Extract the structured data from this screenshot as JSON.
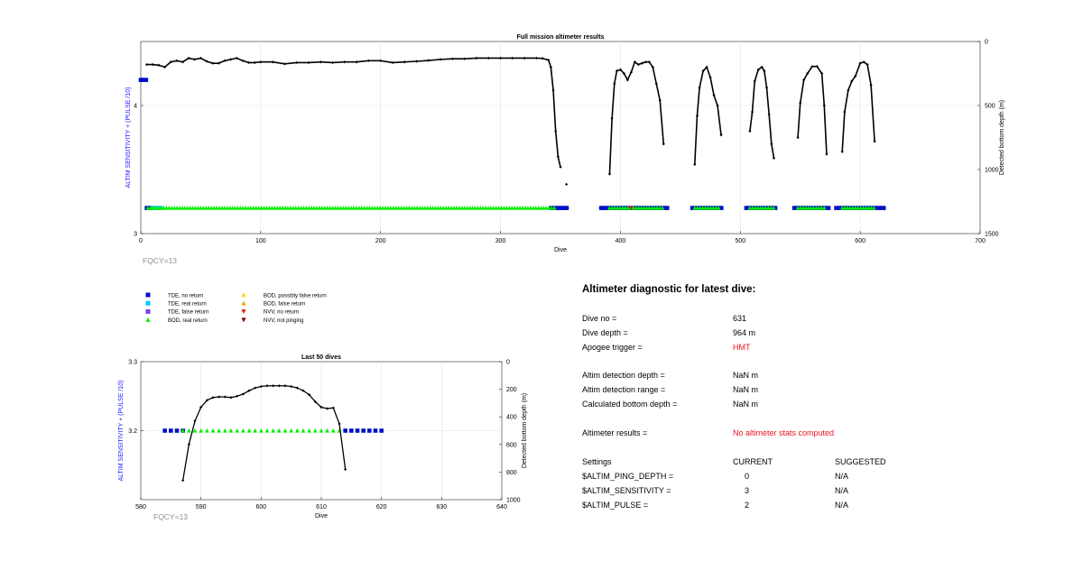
{
  "colors": {
    "axis_label_blue": "#1a1aff",
    "tde_no_return": "#0010c8",
    "tde_real_return": "#00c8ff",
    "tde_false_return": "#7b3fe0",
    "bod_real_return": "#00f000",
    "bod_possibly_false": "#ffd700",
    "bod_false_return": "#f0a000",
    "nvv_no_return": "#e02000",
    "nvv_not_pinging": "#7a0000",
    "depth_line": "#000000",
    "fqcy_text": "#909090",
    "highlight_red": "#e8141c"
  },
  "legend": [
    {
      "label": "TDE, no return",
      "color": "#0010c8",
      "marker": "square"
    },
    {
      "label": "TDE, real return",
      "color": "#00c8ff",
      "marker": "square"
    },
    {
      "label": "TDE, false return",
      "color": "#7b3fe0",
      "marker": "square"
    },
    {
      "label": "BOD, real return",
      "color": "#00f000",
      "marker": "triangle-up"
    },
    {
      "label": "BOD, possibly false return",
      "color": "#ffd700",
      "marker": "triangle-up"
    },
    {
      "label": "BOD, false return",
      "color": "#f0a000",
      "marker": "triangle-up"
    },
    {
      "label": "NVV, no return",
      "color": "#e02000",
      "marker": "triangle-down"
    },
    {
      "label": "NVV, not pinging",
      "color": "#7a0000",
      "marker": "triangle-down"
    }
  ],
  "chart_data": [
    {
      "type": "scatter",
      "title": "Full mission altimeter results",
      "xlabel": "Dive",
      "ylabel": "ALTIM SENSITIVITY + (PULSE /10)",
      "y2label": "Detected bottom depth (m)",
      "annotation": "FQCY=13",
      "xlim": [
        0,
        700
      ],
      "xticks": [
        0,
        100,
        200,
        300,
        400,
        500,
        600,
        700
      ],
      "ylim": [
        3,
        4.5
      ],
      "yticks": [
        3,
        4
      ],
      "y2lim": [
        0,
        1500
      ],
      "y2_reversed": true,
      "y2ticks": [
        0,
        500,
        1000,
        1500
      ],
      "grid": true,
      "settings_series": [
        {
          "name": "TDE, no return",
          "y": 4.2,
          "x_ranges": [
            [
              0,
              6
            ]
          ]
        },
        {
          "name": "TDE, no return",
          "y": 3.2,
          "x_ranges": [
            [
              5,
              10
            ],
            [
              342,
              356
            ],
            [
              384,
              440
            ],
            [
              460,
              485
            ],
            [
              505,
              530
            ],
            [
              545,
              575
            ],
            [
              580,
              620
            ]
          ]
        },
        {
          "name": "TDE, real return",
          "y": 3.2,
          "x_ranges": [
            [
              10,
              18
            ]
          ]
        },
        {
          "name": "BOD, real return",
          "y": 3.2,
          "x_ranges": [
            [
              6,
              345
            ],
            [
              391,
              435
            ],
            [
              462,
              482
            ],
            [
              508,
              528
            ],
            [
              548,
              572
            ],
            [
              585,
              612
            ]
          ]
        },
        {
          "name": "NVV, no return",
          "y": 3.2,
          "x": [
            409
          ]
        }
      ],
      "depth_series": [
        {
          "x": [
            5,
            10,
            15,
            20,
            25,
            30,
            35,
            40,
            45,
            50,
            55,
            60,
            65,
            70,
            75,
            80,
            85,
            90,
            95,
            100,
            110,
            120,
            130,
            140,
            150,
            160,
            170,
            180,
            190,
            200,
            210,
            220,
            230,
            240,
            250,
            260,
            270,
            280,
            290,
            300,
            310,
            320,
            330,
            335,
            340,
            342,
            344,
            346,
            348,
            350
          ],
          "y": [
            180,
            180,
            185,
            200,
            160,
            150,
            160,
            130,
            140,
            130,
            155,
            170,
            170,
            150,
            140,
            130,
            150,
            165,
            165,
            160,
            160,
            175,
            165,
            165,
            160,
            165,
            160,
            160,
            150,
            150,
            165,
            160,
            155,
            148,
            140,
            135,
            135,
            130,
            130,
            130,
            130,
            130,
            130,
            132,
            145,
            200,
            380,
            700,
            900,
            980
          ]
        },
        {
          "x": [
            355
          ],
          "y": [
            1115
          ]
        },
        {
          "x": [
            391,
            393,
            395,
            397,
            400,
            403,
            406,
            409,
            412,
            415,
            418,
            421,
            424,
            427,
            430,
            433,
            436
          ],
          "y": [
            1035,
            600,
            330,
            230,
            220,
            250,
            300,
            240,
            160,
            180,
            170,
            160,
            160,
            200,
            330,
            460,
            800
          ]
        },
        {
          "x": [
            462,
            464,
            466,
            469,
            472,
            475,
            478,
            481,
            484
          ],
          "y": [
            960,
            580,
            360,
            230,
            200,
            280,
            420,
            500,
            730
          ]
        },
        {
          "x": [
            508,
            510,
            512,
            515,
            518,
            520,
            522,
            524,
            526,
            528
          ],
          "y": [
            700,
            550,
            310,
            220,
            200,
            230,
            360,
            570,
            800,
            910
          ]
        },
        {
          "x": [
            548,
            550,
            553,
            556,
            560,
            564,
            568,
            570,
            572
          ],
          "y": [
            750,
            480,
            300,
            250,
            195,
            195,
            250,
            500,
            880
          ]
        },
        {
          "x": [
            585,
            587,
            590,
            593,
            596,
            600,
            603,
            606,
            609,
            612
          ],
          "y": [
            860,
            550,
            380,
            310,
            270,
            170,
            160,
            180,
            340,
            780
          ]
        }
      ]
    },
    {
      "type": "scatter",
      "title": "Last 50 dives",
      "xlabel": "Dive",
      "ylabel": "ALTIM SENSITIVITY + (PULSE /10)",
      "y2label": "Detected bottom depth (m)",
      "annotation": "FQCY=13",
      "xlim": [
        580,
        640
      ],
      "xticks": [
        580,
        590,
        600,
        610,
        620,
        630,
        640
      ],
      "ylim": [
        3.1,
        3.3
      ],
      "yticks": [
        3.2,
        3.3
      ],
      "y2lim": [
        0,
        1000
      ],
      "y2_reversed": true,
      "y2ticks": [
        0,
        200,
        400,
        600,
        800,
        1000
      ],
      "grid": true,
      "settings_series": [
        {
          "name": "TDE, no return",
          "y": 3.2,
          "x": [
            584,
            585,
            586,
            587,
            614,
            615,
            616,
            617,
            618,
            619,
            620
          ]
        },
        {
          "name": "BOD, real return",
          "y": 3.2,
          "x": [
            587,
            588,
            589,
            590,
            591,
            592,
            593,
            594,
            595,
            596,
            597,
            598,
            599,
            600,
            601,
            602,
            603,
            604,
            605,
            606,
            607,
            608,
            609,
            610,
            611,
            612,
            613
          ]
        }
      ],
      "depth_series": [
        {
          "x": [
            587,
            588,
            589,
            590,
            591,
            592,
            593,
            594,
            595,
            596,
            597,
            598,
            599,
            600,
            601,
            602,
            603,
            604,
            605,
            606,
            607,
            608,
            609,
            610,
            611,
            612,
            613,
            614
          ],
          "y": [
            860,
            600,
            430,
            330,
            280,
            260,
            255,
            255,
            260,
            250,
            235,
            210,
            190,
            180,
            175,
            175,
            175,
            175,
            180,
            190,
            210,
            240,
            290,
            330,
            340,
            335,
            450,
            780
          ]
        }
      ]
    }
  ],
  "diagnostic": {
    "title": "Altimeter diagnostic for latest dive:",
    "rows": [
      {
        "label": "Dive no =",
        "value": "631",
        "red": false
      },
      {
        "label": "Dive depth =",
        "value": "964 m",
        "red": false
      },
      {
        "label": "Apogee trigger =",
        "value": "HMT",
        "red": true
      },
      {
        "label": "Altim detection depth =",
        "value": "NaN m",
        "red": false
      },
      {
        "label": "Altim detection range =",
        "value": "NaN m",
        "red": false
      },
      {
        "label": "Calculated bottom depth =",
        "value": "NaN m",
        "red": false
      },
      {
        "label": "Altimeter results =",
        "value": "No altimeter stats computed",
        "red": true
      }
    ],
    "settings_header": {
      "col1": "Settings",
      "col2": "CURRENT",
      "col3": "SUGGESTED"
    },
    "settings": [
      {
        "name": "$ALTIM_PING_DEPTH =",
        "current": "0",
        "suggested": "N/A"
      },
      {
        "name": "$ALTIM_SENSITIVITY =",
        "current": "3",
        "suggested": "N/A"
      },
      {
        "name": "$ALTIM_PULSE =",
        "current": "2",
        "suggested": "N/A"
      }
    ]
  }
}
